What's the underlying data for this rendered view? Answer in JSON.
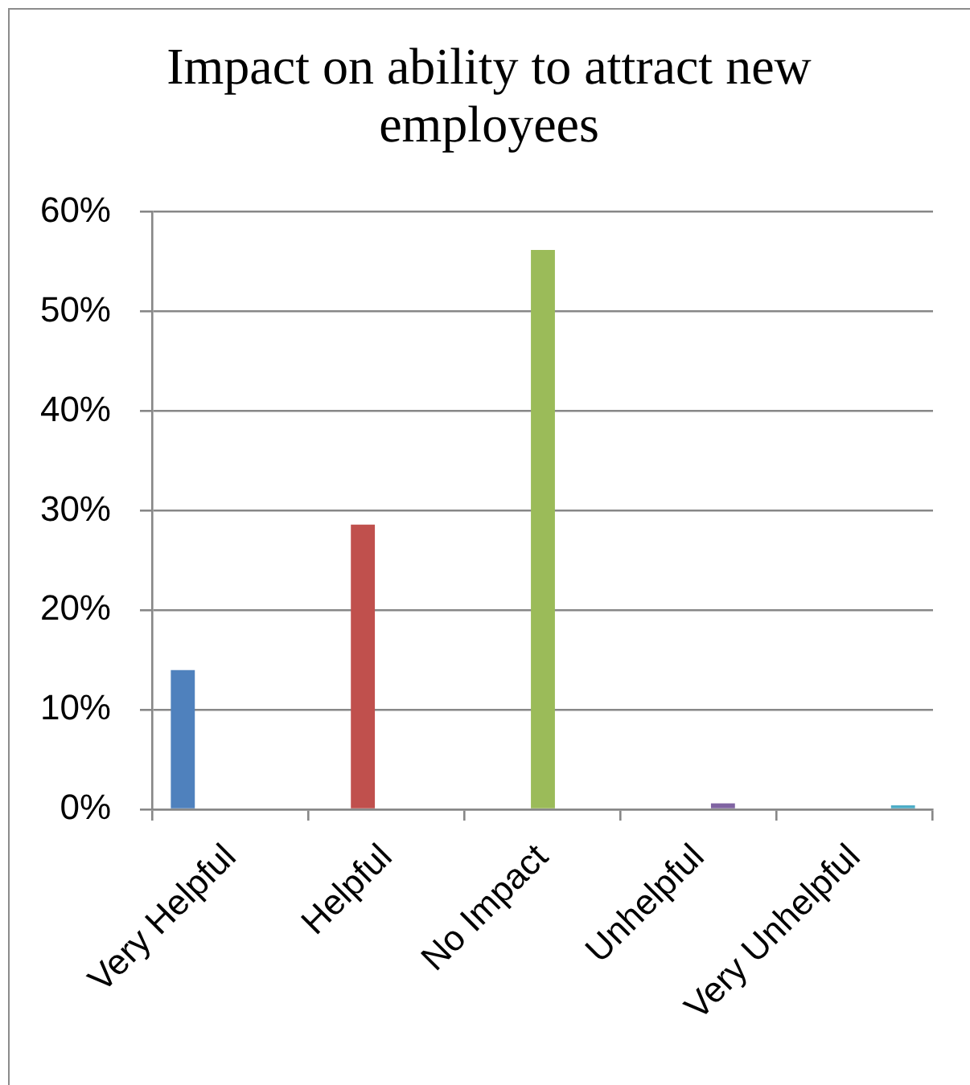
{
  "chart_data": {
    "type": "bar",
    "title": "Impact on ability to attract new employees",
    "categories": [
      "Very Helpful",
      "Helpful",
      "No Impact",
      "Unhelpful",
      "Very Unhelpful"
    ],
    "series": [
      {
        "color": "#4f81bd",
        "values": [
          14.0,
          null,
          null,
          null,
          null
        ]
      },
      {
        "color": "#c0504d",
        "values": [
          null,
          28.6,
          null,
          null,
          null
        ]
      },
      {
        "color": "#9bbb59",
        "values": [
          null,
          null,
          56.2,
          null,
          null
        ]
      },
      {
        "color": "#8064a2",
        "values": [
          null,
          null,
          null,
          0.6,
          null
        ]
      },
      {
        "color": "#4bacc6",
        "values": [
          null,
          null,
          null,
          null,
          0.4
        ]
      }
    ],
    "ylim": [
      0,
      60
    ],
    "yticks": [
      {
        "value": 0,
        "label": "0%"
      },
      {
        "value": 10,
        "label": "10%"
      },
      {
        "value": 20,
        "label": "20%"
      },
      {
        "value": 30,
        "label": "30%"
      },
      {
        "value": 40,
        "label": "40%"
      },
      {
        "value": 50,
        "label": "50%"
      },
      {
        "value": 60,
        "label": "60%"
      }
    ],
    "grid": "y",
    "legend": false
  }
}
